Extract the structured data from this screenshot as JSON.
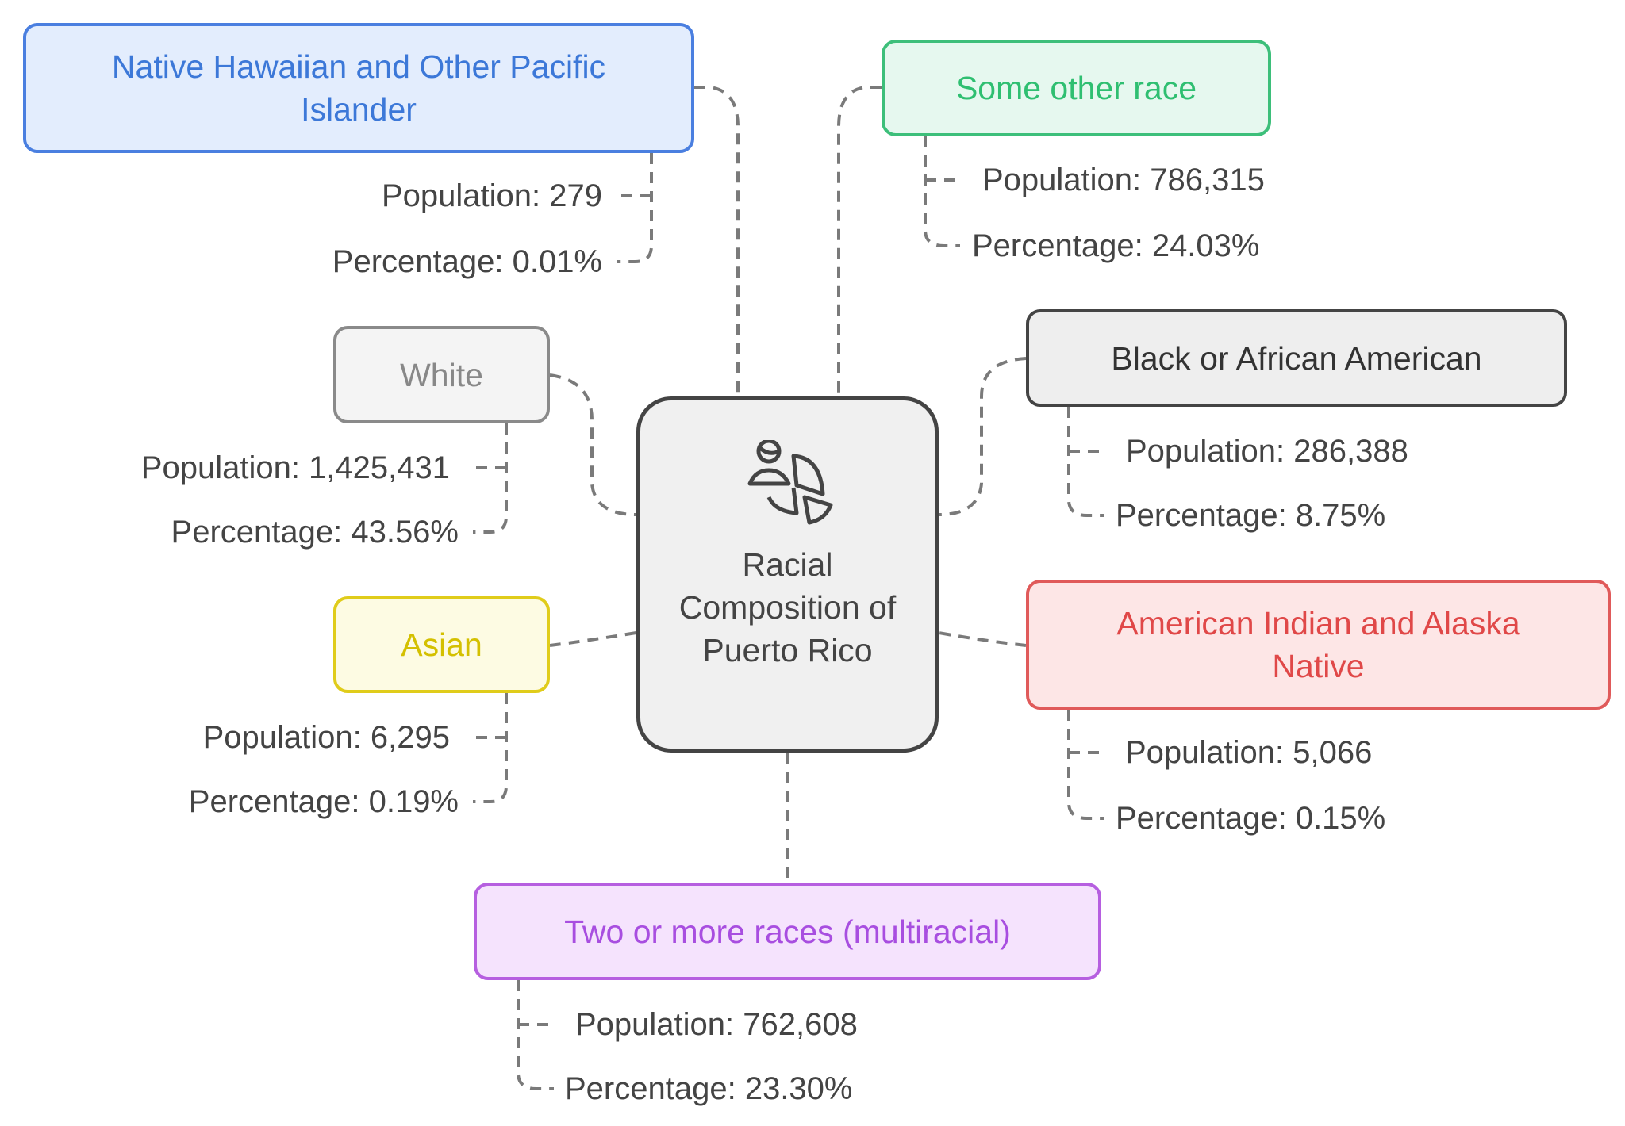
{
  "center": {
    "title": "Racial Composition of Puerto Rico",
    "icon": "person-pie-chart-icon"
  },
  "groups": [
    {
      "name": "Native Hawaiian and Other Pacific Islander",
      "population": "Population: 279",
      "percentage": "Percentage: 0.01%",
      "color": "#3c78d8"
    },
    {
      "name": "Some other race",
      "population": "Population: 786,315",
      "percentage": "Percentage: 24.03%",
      "color": "#2fbf71"
    },
    {
      "name": "White",
      "population": "Population: 1,425,431",
      "percentage": "Percentage: 43.56%",
      "color": "#888888"
    },
    {
      "name": "Black or African American",
      "population": "Population: 286,388",
      "percentage": "Percentage: 8.75%",
      "color": "#333333"
    },
    {
      "name": "Asian",
      "population": "Population: 6,295",
      "percentage": "Percentage: 0.19%",
      "color": "#d4c000"
    },
    {
      "name": "American Indian and Alaska Native",
      "population": "Population: 5,066",
      "percentage": "Percentage: 0.15%",
      "color": "#e04848"
    },
    {
      "name": "Two or more races (multiracial)",
      "population": "Population: 762,608",
      "percentage": "Percentage: 23.30%",
      "color": "#a84ee0"
    }
  ]
}
